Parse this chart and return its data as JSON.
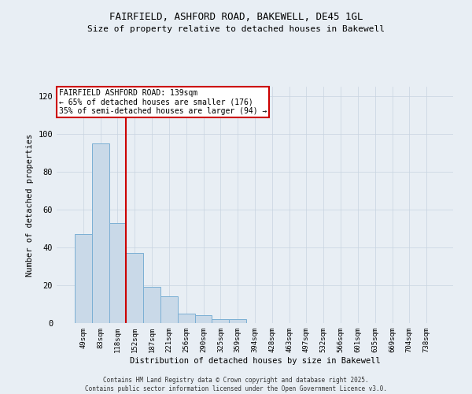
{
  "title_line1": "FAIRFIELD, ASHFORD ROAD, BAKEWELL, DE45 1GL",
  "title_line2": "Size of property relative to detached houses in Bakewell",
  "xlabel": "Distribution of detached houses by size in Bakewell",
  "ylabel": "Number of detached properties",
  "bar_labels": [
    "49sqm",
    "83sqm",
    "118sqm",
    "152sqm",
    "187sqm",
    "221sqm",
    "256sqm",
    "290sqm",
    "325sqm",
    "359sqm",
    "394sqm",
    "428sqm",
    "463sqm",
    "497sqm",
    "532sqm",
    "566sqm",
    "601sqm",
    "635sqm",
    "669sqm",
    "704sqm",
    "738sqm"
  ],
  "bar_values": [
    47,
    95,
    53,
    37,
    19,
    14,
    5,
    4,
    2,
    2,
    0,
    0,
    0,
    0,
    0,
    0,
    0,
    0,
    0,
    0,
    0
  ],
  "bar_color": "#c9d9e8",
  "bar_edge_color": "#7bafd4",
  "vline_x": 2.5,
  "vline_color": "#cc0000",
  "annotation_title": "FAIRFIELD ASHFORD ROAD: 139sqm",
  "annotation_line2": "← 65% of detached houses are smaller (176)",
  "annotation_line3": "35% of semi-detached houses are larger (94) →",
  "annotation_box_color": "#ffffff",
  "annotation_box_edge": "#cc0000",
  "ylim": [
    0,
    125
  ],
  "yticks": [
    0,
    20,
    40,
    60,
    80,
    100,
    120
  ],
  "grid_color": "#c8d4e0",
  "bg_color": "#e8eef4",
  "footer": "Contains HM Land Registry data © Crown copyright and database right 2025.\nContains public sector information licensed under the Open Government Licence v3.0."
}
